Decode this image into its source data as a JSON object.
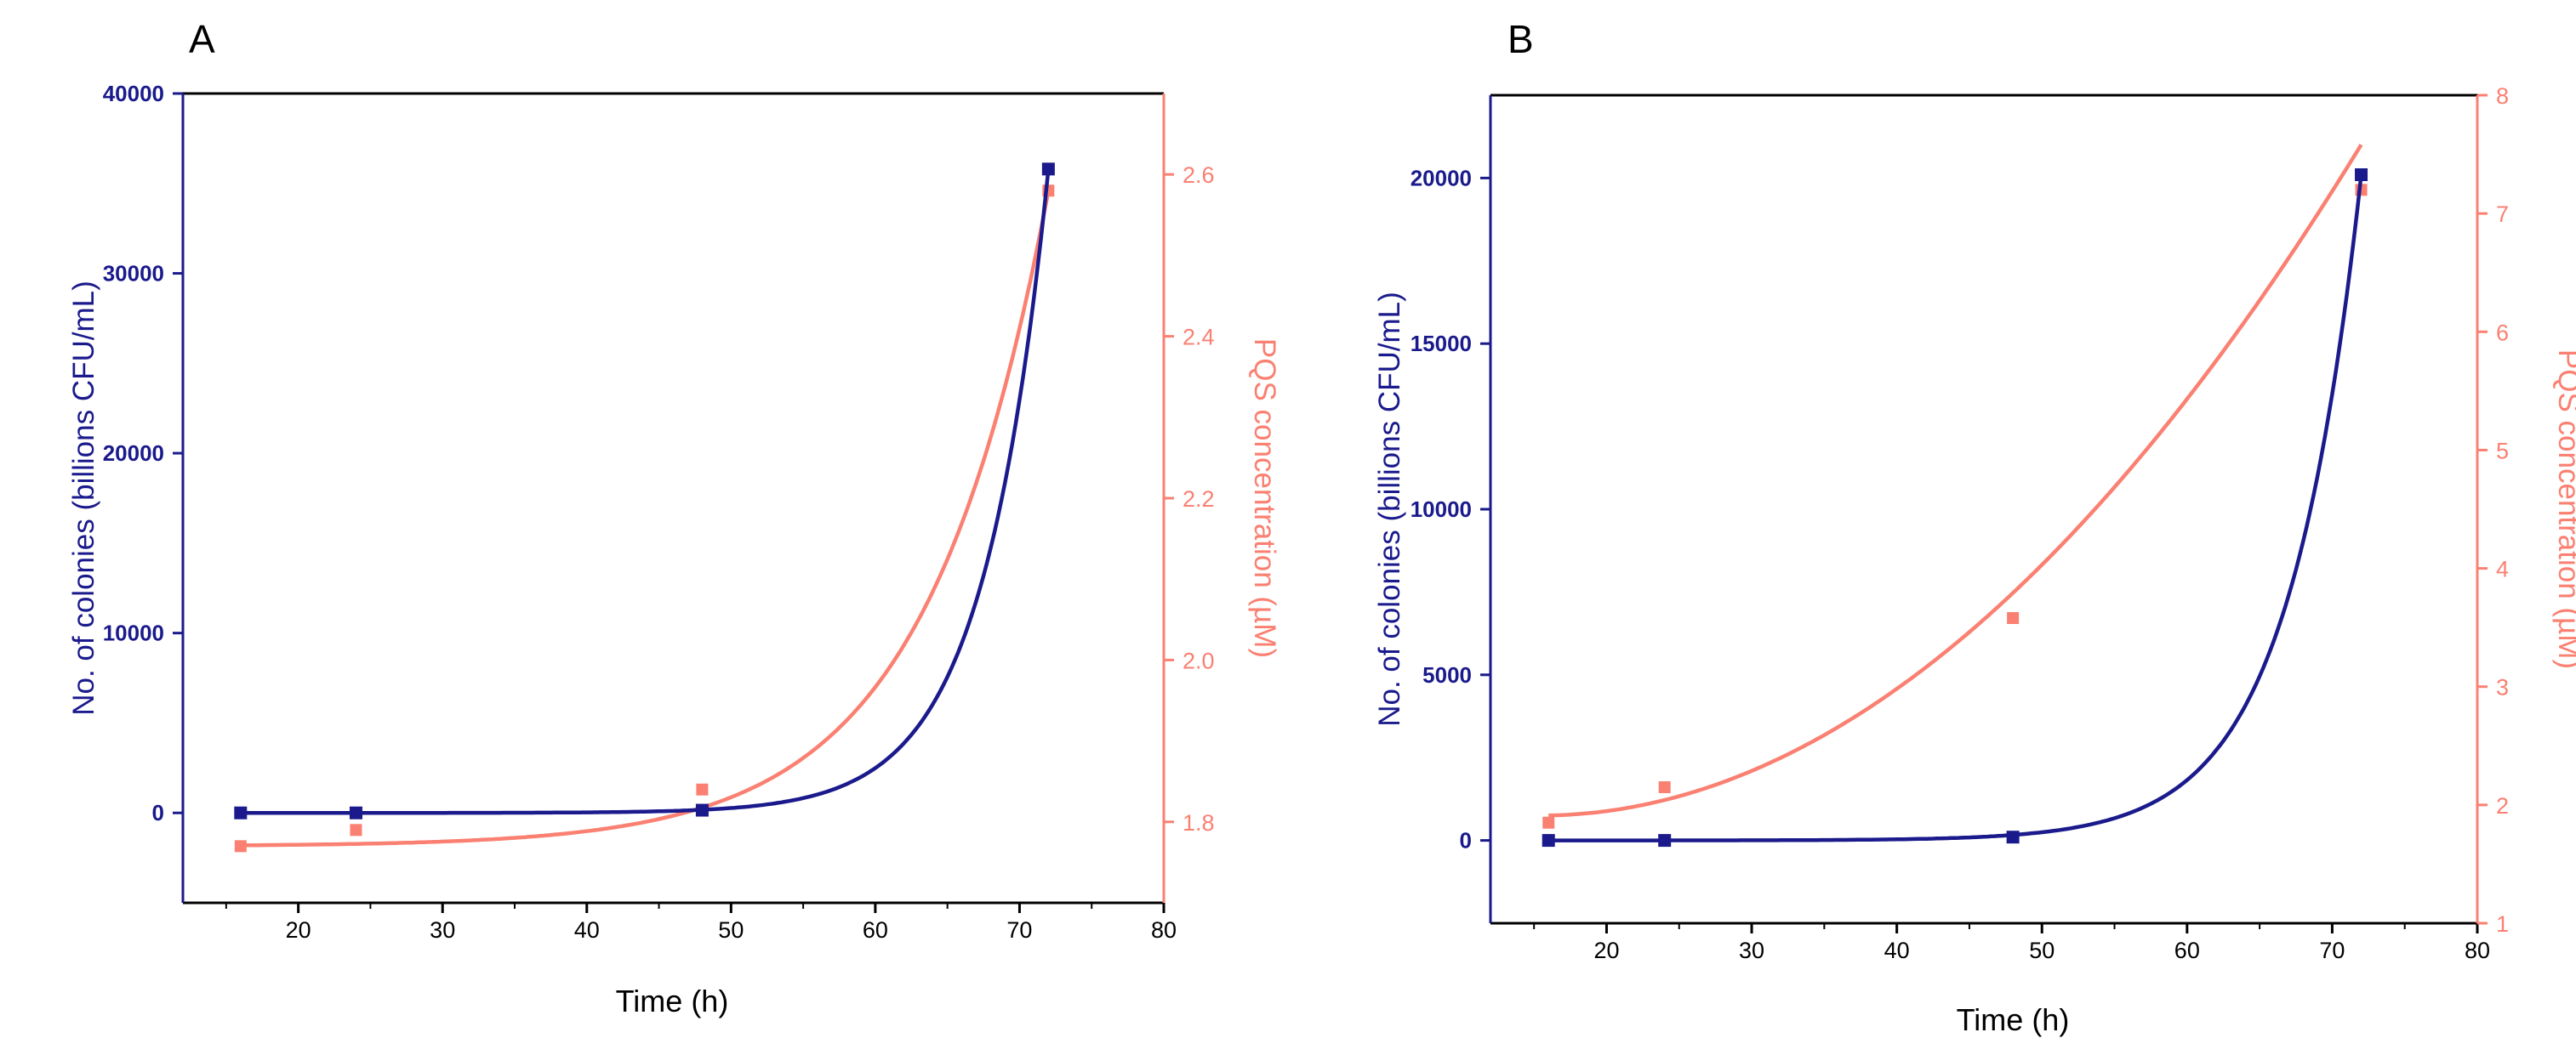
{
  "colors": {
    "left_axis": "#1a1a8c",
    "right_axis": "#fa8072",
    "frame": "#000000",
    "background": "#ffffff"
  },
  "chart_data": [
    {
      "panel_label": "A",
      "type": "scatter",
      "xlabel": "Time (h)",
      "ylabel_left": "No. of colonies (billions CFU/mL)",
      "ylabel_right": "PQS concentration (µM)",
      "xlim": [
        12,
        80
      ],
      "ylim_left": [
        -5000,
        40000
      ],
      "ylim_right": [
        1.7,
        2.7
      ],
      "x_ticks": [
        20,
        30,
        40,
        50,
        60,
        70,
        80
      ],
      "y_left_ticks": [
        0,
        10000,
        20000,
        30000,
        40000
      ],
      "y_right_ticks": [
        1.8,
        2.0,
        2.2,
        2.4,
        2.6
      ],
      "y_right_decimals": 1,
      "series": [
        {
          "name": "No. of colonies",
          "axis": "left",
          "points": [
            [
              16,
              0
            ],
            [
              24,
              0
            ],
            [
              48,
              150
            ],
            [
              72,
              35800
            ]
          ],
          "fit": {
            "kind": "exp",
            "base": 0,
            "amp": 35800,
            "k": 0.222,
            "x0": 72,
            "xmin": 16,
            "xmax": 72
          }
        },
        {
          "name": "PQS concentration",
          "axis": "right",
          "points": [
            [
              16,
              1.77
            ],
            [
              24,
              1.79
            ],
            [
              48,
              1.84
            ],
            [
              72,
              2.58
            ]
          ],
          "fit": {
            "kind": "exp",
            "base": 1.77,
            "amp": 0.81,
            "k": 0.118,
            "x0": 72,
            "xmin": 16,
            "xmax": 72
          }
        }
      ]
    },
    {
      "panel_label": "B",
      "type": "scatter",
      "xlabel": "Time (h)",
      "ylabel_left": "No. of colonies (billions CFU/mL)",
      "ylabel_right": "PQS concentration (µM)",
      "xlim": [
        12,
        80
      ],
      "ylim_left": [
        -2500,
        22500
      ],
      "ylim_right": [
        1,
        8
      ],
      "x_ticks": [
        20,
        30,
        40,
        50,
        60,
        70,
        80
      ],
      "y_left_ticks": [
        0,
        5000,
        10000,
        15000,
        20000
      ],
      "y_right_ticks": [
        1,
        2,
        3,
        4,
        5,
        6,
        7,
        8
      ],
      "y_right_decimals": 0,
      "series": [
        {
          "name": "No. of colonies",
          "axis": "left",
          "points": [
            [
              16,
              0
            ],
            [
              24,
              0
            ],
            [
              48,
              100
            ],
            [
              72,
              20100
            ]
          ],
          "fit": {
            "kind": "exp",
            "base": 0,
            "amp": 20100,
            "k": 0.2,
            "x0": 72,
            "xmin": 16,
            "xmax": 72
          }
        },
        {
          "name": "PQS concentration",
          "axis": "right",
          "points": [
            [
              16,
              1.85
            ],
            [
              24,
              2.15
            ],
            [
              48,
              3.58
            ],
            [
              72,
              7.2
            ]
          ],
          "fit": {
            "kind": "poly",
            "coef": [
              2.33,
              -0.0545,
              0.00177
            ],
            "xmin": 16,
            "xmax": 72
          }
        }
      ]
    }
  ]
}
